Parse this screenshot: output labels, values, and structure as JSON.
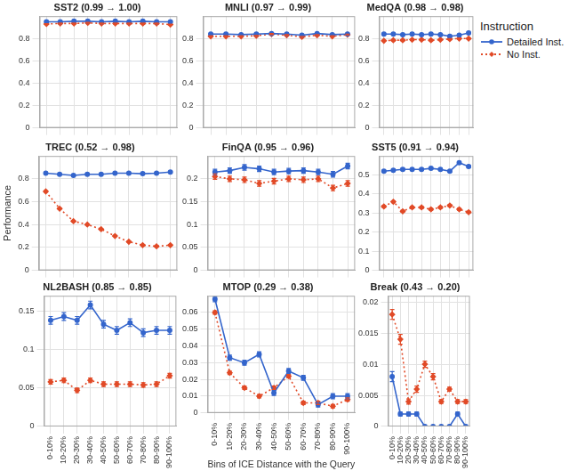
{
  "chart_data": [
    {
      "type": "line",
      "title": "SST2 (0.99 → 1.00)",
      "categories": [
        "0-10%",
        "10-20%",
        "20-30%",
        "30-40%",
        "40-50%",
        "50-60%",
        "60-70%",
        "70-80%",
        "80-90%",
        "90-100%"
      ],
      "series": [
        {
          "name": "Detailed Inst.",
          "color": "#3465cc",
          "marker": "circle",
          "line_style": "solid",
          "values": [
            0.95,
            0.95,
            0.955,
            0.955,
            0.95,
            0.955,
            0.95,
            0.955,
            0.95,
            0.95
          ],
          "errors": [
            0.004,
            0.004,
            0.004,
            0.004,
            0.004,
            0.004,
            0.004,
            0.004,
            0.004,
            0.004
          ]
        },
        {
          "name": "No Inst.",
          "color": "#e14a27",
          "marker": "diamond",
          "line_style": "dotted",
          "values": [
            0.93,
            0.935,
            0.935,
            0.94,
            0.935,
            0.935,
            0.935,
            0.935,
            0.935,
            0.925
          ],
          "errors": [
            0.004,
            0.004,
            0.004,
            0.004,
            0.004,
            0.004,
            0.004,
            0.004,
            0.004,
            0.004
          ]
        }
      ],
      "ylim": [
        0,
        1
      ],
      "yticks": [
        0,
        0.2,
        0.4,
        0.6,
        0.8
      ],
      "grid": true,
      "tick_labels": "y"
    },
    {
      "type": "line",
      "title": "MNLI (0.97 → 0.99)",
      "categories": [
        "0-10%",
        "10-20%",
        "20-30%",
        "30-40%",
        "40-50%",
        "50-60%",
        "60-70%",
        "70-80%",
        "80-90%",
        "90-100%"
      ],
      "series": [
        {
          "name": "Detailed Inst.",
          "color": "#3465cc",
          "marker": "circle",
          "line_style": "solid",
          "values": [
            0.84,
            0.84,
            0.835,
            0.84,
            0.845,
            0.84,
            0.83,
            0.845,
            0.835,
            0.84
          ],
          "errors": [
            0.005,
            0.005,
            0.005,
            0.005,
            0.005,
            0.005,
            0.005,
            0.005,
            0.005,
            0.005
          ]
        },
        {
          "name": "No Inst.",
          "color": "#e14a27",
          "marker": "diamond",
          "line_style": "dotted",
          "values": [
            0.82,
            0.82,
            0.82,
            0.825,
            0.84,
            0.83,
            0.815,
            0.83,
            0.82,
            0.835
          ],
          "errors": [
            0.005,
            0.005,
            0.005,
            0.005,
            0.005,
            0.005,
            0.005,
            0.005,
            0.005,
            0.005
          ]
        }
      ],
      "ylim": [
        0,
        1
      ],
      "yticks": [
        0,
        0.2,
        0.4,
        0.6,
        0.8
      ],
      "grid": true,
      "tick_labels": "y"
    },
    {
      "type": "line",
      "title": "MedQA (0.98 → 0.98)",
      "categories": [
        "0-10%",
        "10-20%",
        "20-30%",
        "30-40%",
        "40-50%",
        "50-60%",
        "60-70%",
        "70-80%",
        "80-90%",
        "90-100%"
      ],
      "series": [
        {
          "name": "Detailed Inst.",
          "color": "#3465cc",
          "marker": "circle",
          "line_style": "solid",
          "values": [
            0.84,
            0.84,
            0.835,
            0.84,
            0.835,
            0.84,
            0.835,
            0.82,
            0.83,
            0.85
          ],
          "errors": [
            0.005,
            0.005,
            0.005,
            0.005,
            0.005,
            0.005,
            0.005,
            0.005,
            0.005,
            0.005
          ]
        },
        {
          "name": "No Inst.",
          "color": "#e14a27",
          "marker": "diamond",
          "line_style": "dotted",
          "values": [
            0.78,
            0.785,
            0.785,
            0.79,
            0.79,
            0.785,
            0.79,
            0.795,
            0.8,
            0.8
          ],
          "errors": [
            0.005,
            0.005,
            0.005,
            0.005,
            0.005,
            0.005,
            0.005,
            0.005,
            0.005,
            0.005
          ]
        }
      ],
      "ylim": [
        0,
        1
      ],
      "yticks": [
        0,
        0.2,
        0.4,
        0.6,
        0.8
      ],
      "grid": true,
      "tick_labels": "y",
      "legend": "right",
      "legend_title": "Instruction"
    },
    {
      "type": "line",
      "title": "TREC (0.52 → 0.98)",
      "ylabel": "Performance",
      "categories": [
        "0-10%",
        "10-20%",
        "20-30%",
        "30-40%",
        "40-50%",
        "50-60%",
        "60-70%",
        "70-80%",
        "80-90%",
        "90-100%"
      ],
      "series": [
        {
          "name": "Detailed Inst.",
          "color": "#3465cc",
          "marker": "circle",
          "line_style": "solid",
          "values": [
            0.85,
            0.84,
            0.83,
            0.84,
            0.84,
            0.85,
            0.85,
            0.845,
            0.85,
            0.86
          ],
          "errors": [
            0.005,
            0.005,
            0.005,
            0.005,
            0.005,
            0.005,
            0.005,
            0.005,
            0.005,
            0.005
          ]
        },
        {
          "name": "No Inst.",
          "color": "#e14a27",
          "marker": "diamond",
          "line_style": "dotted",
          "values": [
            0.69,
            0.54,
            0.43,
            0.4,
            0.36,
            0.3,
            0.25,
            0.22,
            0.21,
            0.22
          ],
          "errors": [
            0.005,
            0.005,
            0.005,
            0.005,
            0.005,
            0.005,
            0.005,
            0.005,
            0.005,
            0.005
          ]
        }
      ],
      "ylim": [
        0,
        1
      ],
      "yticks": [
        0,
        0.2,
        0.4,
        0.6,
        0.8
      ],
      "grid": true,
      "tick_labels": "y"
    },
    {
      "type": "line",
      "title": "FinQA (0.95 → 0.96)",
      "categories": [
        "0-10%",
        "10-20%",
        "20-30%",
        "30-40%",
        "40-50%",
        "50-60%",
        "60-70%",
        "70-80%",
        "80-90%",
        "90-100%"
      ],
      "series": [
        {
          "name": "Detailed Inst.",
          "color": "#3465cc",
          "marker": "circle",
          "line_style": "solid",
          "values": [
            0.215,
            0.218,
            0.225,
            0.222,
            0.215,
            0.217,
            0.218,
            0.215,
            0.21,
            0.228
          ],
          "errors": [
            0.006,
            0.006,
            0.006,
            0.006,
            0.006,
            0.006,
            0.006,
            0.006,
            0.006,
            0.006
          ]
        },
        {
          "name": "No Inst.",
          "color": "#e14a27",
          "marker": "diamond",
          "line_style": "dotted",
          "values": [
            0.205,
            0.2,
            0.198,
            0.19,
            0.195,
            0.2,
            0.198,
            0.2,
            0.18,
            0.19
          ],
          "errors": [
            0.006,
            0.006,
            0.006,
            0.006,
            0.006,
            0.006,
            0.006,
            0.006,
            0.006,
            0.006
          ]
        }
      ],
      "ylim": [
        0,
        0.25
      ],
      "yticks": [
        0,
        0.05,
        0.1,
        0.15,
        0.2
      ],
      "grid": true,
      "tick_labels": "y"
    },
    {
      "type": "line",
      "title": "SST5 (0.91 → 0.94)",
      "categories": [
        "0-10%",
        "10-20%",
        "20-30%",
        "30-40%",
        "40-50%",
        "50-60%",
        "60-70%",
        "70-80%",
        "80-90%",
        "90-100%"
      ],
      "series": [
        {
          "name": "Detailed Inst.",
          "color": "#3465cc",
          "marker": "circle",
          "line_style": "solid",
          "values": [
            0.52,
            0.525,
            0.53,
            0.53,
            0.53,
            0.535,
            0.53,
            0.52,
            0.565,
            0.545
          ],
          "errors": [
            0.005,
            0.005,
            0.005,
            0.005,
            0.005,
            0.005,
            0.005,
            0.005,
            0.005,
            0.005
          ]
        },
        {
          "name": "No Inst.",
          "color": "#e14a27",
          "marker": "diamond",
          "line_style": "dotted",
          "values": [
            0.335,
            0.36,
            0.31,
            0.33,
            0.33,
            0.32,
            0.33,
            0.34,
            0.32,
            0.305
          ],
          "errors": [
            0.005,
            0.005,
            0.005,
            0.005,
            0.005,
            0.005,
            0.005,
            0.005,
            0.005,
            0.005
          ]
        }
      ],
      "ylim": [
        0,
        0.6
      ],
      "yticks": [
        0,
        0.1,
        0.2,
        0.3,
        0.4,
        0.5
      ],
      "grid": true,
      "tick_labels": "y"
    },
    {
      "type": "line",
      "title": "NL2BASH (0.85 → 0.85)",
      "categories": [
        "0-10%",
        "10-20%",
        "20-30%",
        "30-40%",
        "40-50%",
        "50-60%",
        "60-70%",
        "70-80%",
        "80-90%",
        "90-100%"
      ],
      "series": [
        {
          "name": "Detailed Inst.",
          "color": "#3465cc",
          "marker": "circle",
          "line_style": "solid",
          "values": [
            0.138,
            0.143,
            0.138,
            0.158,
            0.133,
            0.125,
            0.135,
            0.122,
            0.125,
            0.125
          ],
          "errors": [
            0.005,
            0.005,
            0.005,
            0.005,
            0.005,
            0.005,
            0.005,
            0.005,
            0.005,
            0.005
          ]
        },
        {
          "name": "No Inst.",
          "color": "#e14a27",
          "marker": "diamond",
          "line_style": "dotted",
          "values": [
            0.058,
            0.06,
            0.047,
            0.06,
            0.055,
            0.055,
            0.055,
            0.054,
            0.055,
            0.066
          ],
          "errors": [
            0.003,
            0.003,
            0.003,
            0.003,
            0.003,
            0.003,
            0.003,
            0.003,
            0.003,
            0.003
          ]
        }
      ],
      "ylim": [
        0,
        0.17
      ],
      "yticks": [
        0,
        0.05,
        0.1,
        0.15
      ],
      "grid": true
    },
    {
      "type": "line",
      "title": "MTOP (0.29 → 0.38)",
      "xlabel": "Bins of ICE Distance with the Query",
      "categories": [
        "0-10%",
        "10-20%",
        "20-30%",
        "30-40%",
        "40-50%",
        "50-60%",
        "60-70%",
        "70-80%",
        "80-90%",
        "90-100%"
      ],
      "series": [
        {
          "name": "Detailed Inst.",
          "color": "#3465cc",
          "marker": "circle",
          "line_style": "solid",
          "values": [
            0.068,
            0.033,
            0.03,
            0.035,
            0.012,
            0.025,
            0.021,
            0.005,
            0.01,
            0.01
          ],
          "errors": [
            0.0015,
            0.0015,
            0.0015,
            0.0015,
            0.0015,
            0.0015,
            0.0015,
            0.0015,
            0.0015,
            0.0015
          ]
        },
        {
          "name": "No Inst.",
          "color": "#e14a27",
          "marker": "diamond",
          "line_style": "dotted",
          "values": [
            0.06,
            0.024,
            0.015,
            0.01,
            0.015,
            0.022,
            0.006,
            0.006,
            0.004,
            0.008
          ],
          "errors": [
            0.001,
            0.001,
            0.001,
            0.001,
            0.001,
            0.001,
            0.001,
            0.001,
            0.001,
            0.001
          ]
        }
      ],
      "ylim": [
        0,
        0.07
      ],
      "yticks": [
        0,
        0.01,
        0.02,
        0.03,
        0.04,
        0.05,
        0.06
      ],
      "grid": true
    },
    {
      "type": "line",
      "title": "Break (0.43 → 0.20)",
      "categories": [
        "0-10%",
        "10-20%",
        "20-30%",
        "30-40%",
        "40-50%",
        "50-60%",
        "60-70%",
        "70-80%",
        "80-90%",
        "90-100%"
      ],
      "series": [
        {
          "name": "Detailed Inst.",
          "color": "#3465cc",
          "marker": "circle",
          "line_style": "solid",
          "values": [
            0.008,
            0.002,
            0.002,
            0.002,
            0,
            0,
            0,
            0,
            0.002,
            0
          ],
          "errors": [
            0.0008,
            0.0003,
            0.0003,
            0.0003,
            0,
            0,
            0,
            0,
            0.0003,
            0
          ]
        },
        {
          "name": "No Inst.",
          "color": "#e14a27",
          "marker": "diamond",
          "line_style": "dotted",
          "values": [
            0.018,
            0.014,
            0.004,
            0.006,
            0.01,
            0.008,
            0.004,
            0.006,
            0.004,
            0.004
          ],
          "errors": [
            0.0008,
            0.0008,
            0.0004,
            0.0005,
            0.0005,
            0.0005,
            0.0003,
            0.0003,
            0.0003,
            0.0003
          ]
        }
      ],
      "ylim": [
        0,
        0.021
      ],
      "yticks": [
        0,
        0.005,
        0.01,
        0.015,
        0.02
      ],
      "grid": true
    }
  ]
}
